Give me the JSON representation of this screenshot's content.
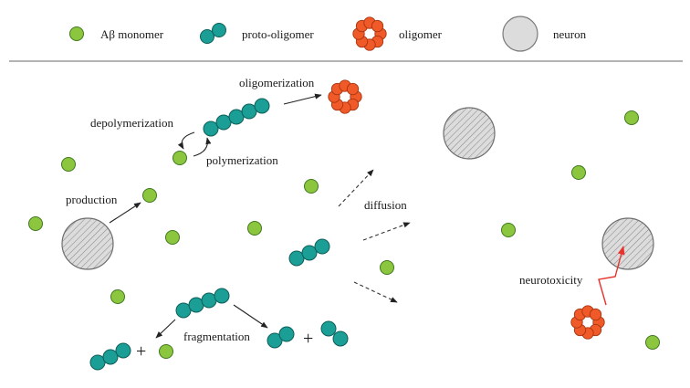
{
  "legend": {
    "monomer": "Aβ monomer",
    "proto_oligomer": "proto-oligomer",
    "oligomer": "oligomer",
    "neuron": "neuron"
  },
  "labels": {
    "oligomerization": "oligomerization",
    "depolymerization": "depolymerization",
    "polymerization": "polymerization",
    "production": "production",
    "diffusion": "diffusion",
    "fragmentation": "fragmentation",
    "neurotoxicity": "neurotoxicity",
    "plus": "+"
  },
  "colors": {
    "monomer_fill": "#8cc63f",
    "monomer_stroke": "#3f7a1e",
    "proto_fill": "#1a9e96",
    "proto_stroke": "#0d5f59",
    "oligomer_fill": "#f05a28",
    "oligomer_stroke": "#a8340f",
    "neuron_fill": "#d9d9d9",
    "neuron_stroke": "#6e6e6e",
    "toxicity_arrow": "#e8322e"
  }
}
